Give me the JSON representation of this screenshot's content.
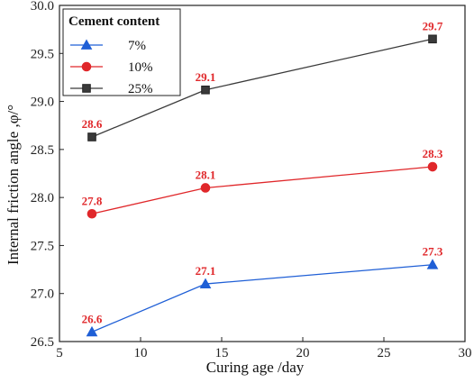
{
  "chart_data": {
    "type": "line",
    "xlabel": "Curing age /day",
    "ylabel": "Internal friction angle ,φ/°",
    "xlim": [
      5,
      30
    ],
    "ylim": [
      26.5,
      30.0
    ],
    "x_ticks": [
      "5",
      "10",
      "15",
      "20",
      "25",
      "30"
    ],
    "y_ticks": [
      "26.5",
      "27.0",
      "27.5",
      "28.0",
      "28.5",
      "29.0",
      "29.5",
      "30.0"
    ],
    "grid": false,
    "legend": {
      "title": "Cement content",
      "placement": "top-left"
    },
    "x": [
      7,
      14,
      28
    ],
    "series": [
      {
        "name": "7%",
        "values": [
          26.6,
          27.1,
          27.3
        ],
        "labels": [
          "26.6",
          "27.1",
          "27.3"
        ],
        "color": "#1f5fd6",
        "marker": "triangle"
      },
      {
        "name": "10%",
        "values": [
          27.83,
          28.1,
          28.32
        ],
        "labels": [
          "27.8",
          "28.1",
          "28.3"
        ],
        "color": "#e0272a",
        "marker": "circle"
      },
      {
        "name": "25%",
        "values": [
          28.63,
          29.12,
          29.65
        ],
        "labels": [
          "28.6",
          "29.1",
          "29.7"
        ],
        "color": "#3a3a3a",
        "marker": "square"
      }
    ],
    "label_color": "#e0272a"
  }
}
